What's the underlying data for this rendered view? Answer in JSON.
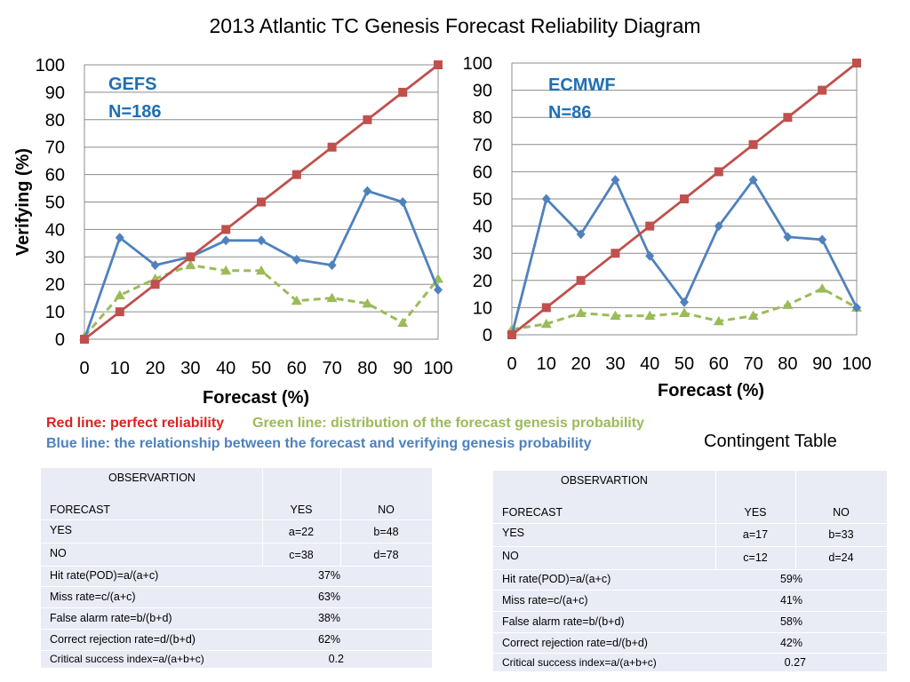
{
  "title": "2013 Atlantic TC Genesis Forecast Reliability Diagram",
  "colors": {
    "red": "#c0504d",
    "blue": "#4f81bd",
    "green": "#9bbb59",
    "text_blue": "#1f6fb5",
    "table_bg": "#e9ebf5"
  },
  "chart_data": [
    {
      "type": "line",
      "annotation": [
        "GEFS",
        "N=186"
      ],
      "xlabel": "Forecast (%)",
      "ylabel": "Verifying (%)",
      "xlim": [
        0,
        100
      ],
      "ylim": [
        0,
        100
      ],
      "x": [
        0,
        10,
        20,
        30,
        40,
        50,
        60,
        70,
        80,
        90,
        100
      ],
      "x_ticks": [
        "0",
        "10",
        "20",
        "30",
        "40",
        "50",
        "60",
        "70",
        "80",
        "90",
        "100"
      ],
      "y_ticks": [
        "0",
        "10",
        "20",
        "30",
        "40",
        "50",
        "60",
        "70",
        "80",
        "90",
        "100"
      ],
      "grid": true,
      "series": [
        {
          "key": "red",
          "color": "#c0504d",
          "marker": "square",
          "dash": false,
          "values": [
            0,
            10,
            20,
            30,
            40,
            50,
            60,
            70,
            80,
            90,
            100
          ]
        },
        {
          "key": "blue",
          "color": "#4f81bd",
          "marker": "diamond",
          "dash": false,
          "values": [
            0,
            37,
            27,
            30,
            36,
            36,
            29,
            27,
            54,
            50,
            18
          ]
        },
        {
          "key": "green",
          "color": "#9bbb59",
          "marker": "triangle",
          "dash": true,
          "values": [
            1,
            16,
            22,
            27,
            25,
            25,
            14,
            15,
            13,
            6,
            22
          ]
        }
      ]
    },
    {
      "type": "line",
      "annotation": [
        "ECMWF",
        "N=86"
      ],
      "xlabel": "Forecast (%)",
      "ylabel": "",
      "xlim": [
        0,
        100
      ],
      "ylim": [
        0,
        100
      ],
      "x": [
        0,
        10,
        20,
        30,
        40,
        50,
        60,
        70,
        80,
        90,
        100
      ],
      "x_ticks": [
        "0",
        "10",
        "20",
        "30",
        "40",
        "50",
        "60",
        "70",
        "80",
        "90",
        "100"
      ],
      "y_ticks": [
        "0",
        "10",
        "20",
        "30",
        "40",
        "50",
        "60",
        "70",
        "80",
        "90",
        "100"
      ],
      "grid": true,
      "series": [
        {
          "key": "red",
          "color": "#c0504d",
          "marker": "square",
          "dash": false,
          "values": [
            0,
            10,
            20,
            30,
            40,
            50,
            60,
            70,
            80,
            90,
            100
          ]
        },
        {
          "key": "blue",
          "color": "#4f81bd",
          "marker": "diamond",
          "dash": false,
          "values": [
            0,
            50,
            37,
            57,
            29,
            12,
            40,
            57,
            36,
            35,
            10
          ]
        },
        {
          "key": "green",
          "color": "#9bbb59",
          "marker": "triangle",
          "dash": true,
          "values": [
            2,
            4,
            8,
            7,
            7,
            8,
            5,
            7,
            11,
            17,
            10
          ]
        }
      ]
    }
  ],
  "legend": {
    "red": "Red line: perfect reliability",
    "green": "Green line: distribution of the forecast genesis probability",
    "blue": "Blue line: the relationship between the forecast and verifying genesis probability"
  },
  "contingent_title": "Contingent Table",
  "tables": [
    {
      "observation_header": "OBSERVARTION",
      "forecast_header": "FORECAST",
      "col_yes": "YES",
      "col_no": "NO",
      "rows": [
        {
          "label": "YES",
          "yes": "a=22",
          "no": "b=48"
        },
        {
          "label": "NO",
          "yes": "c=38",
          "no": "d=78"
        }
      ],
      "metrics": [
        {
          "label": "Hit rate(POD)=a/(a+c)",
          "value": "37%"
        },
        {
          "label": "Miss rate=c/(a+c)",
          "value": "63%"
        },
        {
          "label": "False alarm rate=b/(b+d)",
          "value": "38%"
        },
        {
          "label": "Correct rejection rate=d/(b+d)",
          "value": "62%"
        },
        {
          "label": "Critical success index=a/(a+b+c)",
          "value": "0.2"
        }
      ]
    },
    {
      "observation_header": "OBSERVARTION",
      "forecast_header": "FORECAST",
      "col_yes": "YES",
      "col_no": "NO",
      "rows": [
        {
          "label": "YES",
          "yes": "a=17",
          "no": "b=33"
        },
        {
          "label": "NO",
          "yes": "c=12",
          "no": "d=24"
        }
      ],
      "metrics": [
        {
          "label": "Hit rate(POD)=a/(a+c)",
          "value": "59%"
        },
        {
          "label": "Miss rate=c/(a+c)",
          "value": "41%"
        },
        {
          "label": "False alarm rate=b/(b+d)",
          "value": "58%"
        },
        {
          "label": "Correct rejection rate=d/(b+d)",
          "value": "42%"
        },
        {
          "label": "Critical success index=a/(a+b+c)",
          "value": "0.27"
        }
      ]
    }
  ]
}
